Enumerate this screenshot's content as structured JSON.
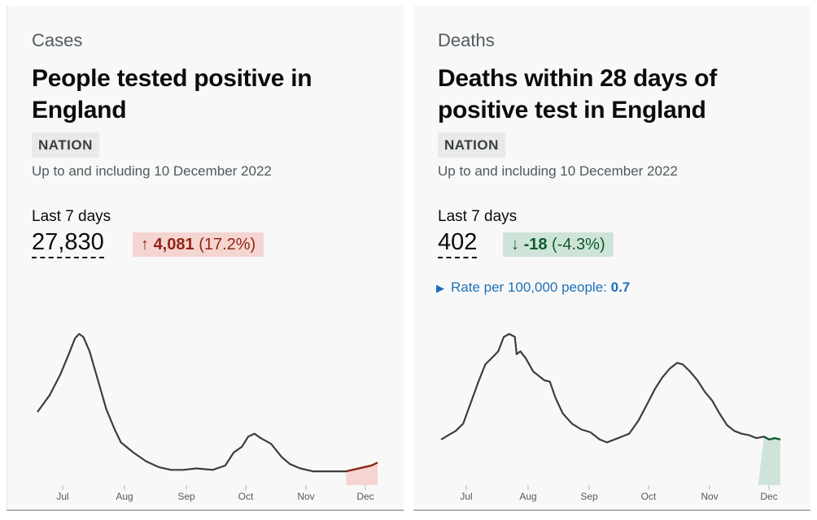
{
  "cards": [
    {
      "caption": "Cases",
      "title": "People tested positive in England",
      "tag": "NATION",
      "updated": "Up to and including 10 December 2022",
      "metric_label": "Last 7 days",
      "metric_value": "27,830",
      "change": {
        "direction": "up",
        "arrow": "↑",
        "amount": "4,081",
        "percent": "(17.2%)",
        "color": "#942514",
        "bg": "#f5d5d1"
      },
      "chart_data": {
        "type": "line",
        "x_ticks": [
          "Jul",
          "Aug",
          "Sep",
          "Oct",
          "Nov",
          "Dec"
        ],
        "series_points": [
          [
            0,
            0.46
          ],
          [
            0.3,
            0.58
          ],
          [
            0.55,
            0.72
          ],
          [
            0.75,
            0.86
          ],
          [
            0.9,
            0.97
          ],
          [
            1.0,
            1.0
          ],
          [
            1.1,
            0.98
          ],
          [
            1.25,
            0.88
          ],
          [
            1.45,
            0.68
          ],
          [
            1.65,
            0.48
          ],
          [
            1.85,
            0.34
          ],
          [
            2.0,
            0.25
          ],
          [
            2.3,
            0.18
          ],
          [
            2.6,
            0.12
          ],
          [
            2.9,
            0.08
          ],
          [
            3.2,
            0.06
          ],
          [
            3.5,
            0.06
          ],
          [
            3.8,
            0.07
          ],
          [
            4.2,
            0.06
          ],
          [
            4.5,
            0.09
          ],
          [
            4.7,
            0.18
          ],
          [
            4.9,
            0.22
          ],
          [
            5.05,
            0.29
          ],
          [
            5.2,
            0.31
          ],
          [
            5.35,
            0.28
          ],
          [
            5.6,
            0.24
          ],
          [
            5.85,
            0.15
          ],
          [
            6.05,
            0.1
          ],
          [
            6.3,
            0.07
          ],
          [
            6.6,
            0.05
          ],
          [
            7.0,
            0.05
          ],
          [
            7.4,
            0.05
          ],
          [
            7.7,
            0.07
          ],
          [
            8.0,
            0.09
          ],
          [
            8.15,
            0.11
          ]
        ],
        "highlight_from": 7.4,
        "x_max": 8.15
      }
    },
    {
      "caption": "Deaths",
      "title": "Deaths within 28 days of positive test in England",
      "tag": "NATION",
      "updated": "Up to and including 10 December 2022",
      "metric_label": "Last 7 days",
      "metric_value": "402",
      "change": {
        "direction": "down",
        "arrow": "↓",
        "amount": "-18",
        "percent": "(-4.3%)",
        "color": "#0f5a2e",
        "bg": "#cfe4d9"
      },
      "rate": {
        "label": "Rate per 100,000 people:",
        "value": "0.7"
      },
      "chart_data": {
        "type": "line",
        "x_ticks": [
          "Jul",
          "Aug",
          "Sep",
          "Oct",
          "Nov",
          "Dec"
        ],
        "series_points": [
          [
            0,
            0.27
          ],
          [
            0.2,
            0.3
          ],
          [
            0.4,
            0.33
          ],
          [
            0.6,
            0.38
          ],
          [
            0.8,
            0.52
          ],
          [
            1.0,
            0.66
          ],
          [
            1.2,
            0.79
          ],
          [
            1.4,
            0.84
          ],
          [
            1.55,
            0.88
          ],
          [
            1.7,
            0.98
          ],
          [
            1.85,
            1.0
          ],
          [
            2.0,
            0.98
          ],
          [
            2.05,
            0.86
          ],
          [
            2.15,
            0.88
          ],
          [
            2.3,
            0.83
          ],
          [
            2.5,
            0.74
          ],
          [
            2.65,
            0.71
          ],
          [
            2.8,
            0.68
          ],
          [
            2.95,
            0.67
          ],
          [
            3.1,
            0.56
          ],
          [
            3.3,
            0.45
          ],
          [
            3.55,
            0.38
          ],
          [
            3.8,
            0.34
          ],
          [
            4.05,
            0.32
          ],
          [
            4.3,
            0.27
          ],
          [
            4.5,
            0.25
          ],
          [
            4.8,
            0.28
          ],
          [
            5.1,
            0.31
          ],
          [
            5.35,
            0.4
          ],
          [
            5.6,
            0.52
          ],
          [
            5.8,
            0.62
          ],
          [
            6.0,
            0.7
          ],
          [
            6.2,
            0.76
          ],
          [
            6.4,
            0.8
          ],
          [
            6.55,
            0.79
          ],
          [
            6.75,
            0.74
          ],
          [
            6.95,
            0.68
          ],
          [
            7.15,
            0.6
          ],
          [
            7.35,
            0.54
          ],
          [
            7.55,
            0.45
          ],
          [
            7.75,
            0.37
          ],
          [
            7.95,
            0.33
          ],
          [
            8.15,
            0.31
          ],
          [
            8.35,
            0.3
          ],
          [
            8.55,
            0.28
          ],
          [
            8.75,
            0.29
          ],
          [
            8.9,
            0.27
          ],
          [
            9.05,
            0.28
          ],
          [
            9.2,
            0.27
          ]
        ],
        "highlight_from": 8.6,
        "x_max": 9.2
      }
    }
  ]
}
